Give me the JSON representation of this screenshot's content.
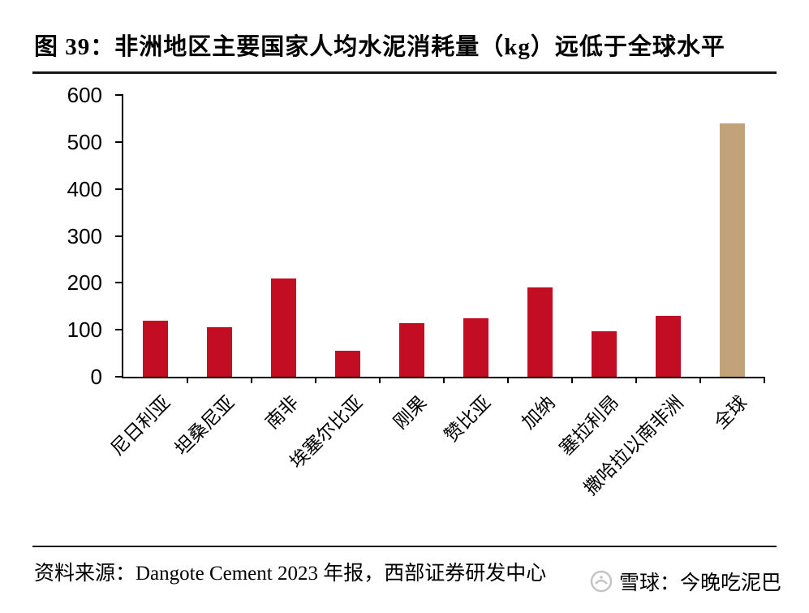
{
  "page": {
    "title": "图 39：非洲地区主要国家人均水泥消耗量（kg）远低于全球水平",
    "source": "资料来源：Dangote Cement 2023 年报，西部证券研发中心",
    "watermark": "雪球：今晚吃泥巴"
  },
  "colors": {
    "bar": "#C30D23",
    "highlight_bar": "#C2A278",
    "axis": "#000000",
    "watermark": "#C4C4C4"
  },
  "chart_data": {
    "type": "bar",
    "title": "非洲地区主要国家人均水泥消耗量（kg）远低于全球水平",
    "categories": [
      "尼日利亚",
      "坦桑尼亚",
      "南非",
      "埃塞尔比亚",
      "刚果",
      "赞比亚",
      "加纳",
      "塞拉利昂",
      "撒哈拉以南非洲",
      "全球"
    ],
    "values": [
      120,
      105,
      210,
      55,
      115,
      125,
      190,
      97,
      130,
      540
    ],
    "unit": "kg",
    "highlight_index": 9,
    "xlabel": "",
    "ylabel": "",
    "ylim": [
      0,
      600
    ],
    "yticks": [
      0,
      100,
      200,
      300,
      400,
      500,
      600
    ],
    "grid": false,
    "legend": false
  }
}
